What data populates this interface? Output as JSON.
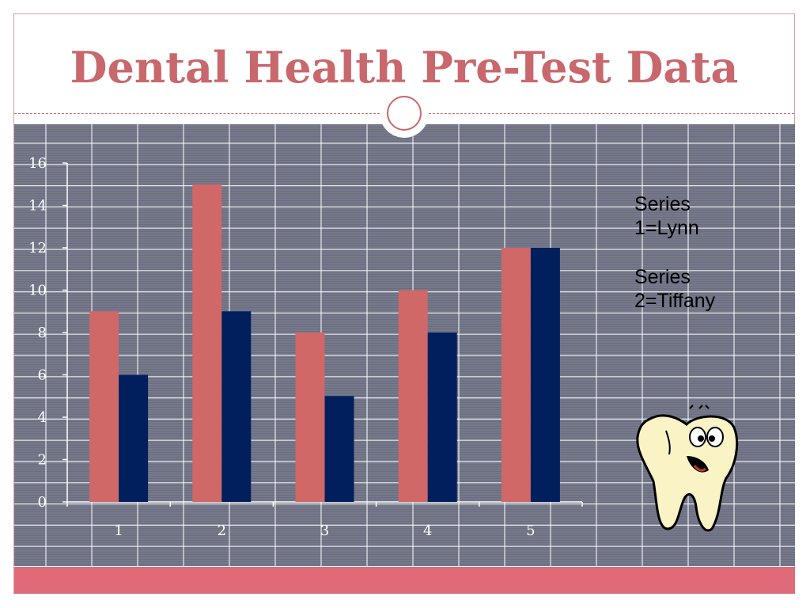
{
  "slide": {
    "title": "Dental Health Pre-Test Data"
  },
  "legend": {
    "line1": "Series",
    "line2": "1=Lynn",
    "line3": "Series",
    "line4": "2=Tiffany"
  },
  "colors": {
    "series1": "#cf6867",
    "series2": "#001f5c",
    "title": "#c9686c",
    "band": "#e06a78"
  },
  "chart_data": {
    "type": "bar",
    "categories": [
      "1",
      "2",
      "3",
      "4",
      "5"
    ],
    "series": [
      {
        "values": [
          9,
          15,
          8,
          10,
          12
        ]
      },
      {
        "values": [
          6,
          9,
          5,
          8,
          12
        ]
      }
    ],
    "ylim": [
      0,
      16
    ],
    "yticks": [
      0,
      2,
      4,
      6,
      8,
      10,
      12,
      14,
      16
    ],
    "grid": true,
    "legend_position": "right"
  }
}
